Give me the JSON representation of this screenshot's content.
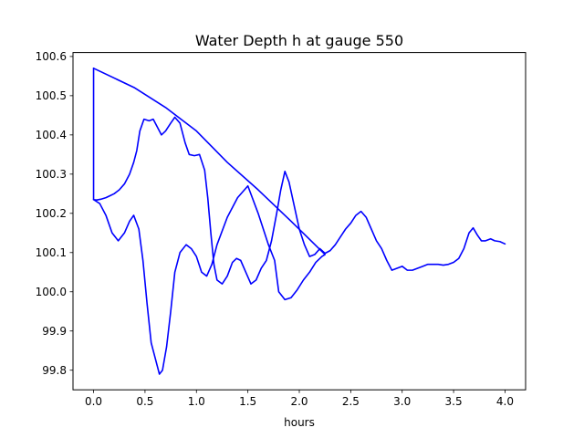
{
  "chart_data": {
    "type": "line",
    "title": "Water Depth h at gauge 550",
    "xlabel": "hours",
    "ylabel": "",
    "xlim": [
      -0.2,
      4.2
    ],
    "ylim": [
      99.75,
      100.61
    ],
    "xticks": [
      0.0,
      0.5,
      1.0,
      1.5,
      2.0,
      2.5,
      3.0,
      3.5,
      4.0
    ],
    "xtick_labels": [
      "0.0",
      "0.5",
      "1.0",
      "1.5",
      "2.0",
      "2.5",
      "3.0",
      "3.5",
      "4.0"
    ],
    "yticks": [
      99.8,
      99.9,
      100.0,
      100.1,
      100.2,
      100.3,
      100.4,
      100.5,
      100.6
    ],
    "ytick_labels": [
      "99.8",
      "99.9",
      "100.0",
      "100.1",
      "100.2",
      "100.3",
      "100.4",
      "100.5",
      "100.6"
    ],
    "grid": false,
    "line_color": "#0000ff",
    "series": [
      {
        "x": [
          0.0,
          0.0,
          0.0,
          0.03,
          0.07,
          0.12,
          0.16,
          0.2,
          0.25,
          0.3,
          0.35,
          0.39,
          0.42,
          0.45,
          0.49,
          0.54,
          0.58,
          0.62,
          0.66,
          0.7,
          0.75,
          0.79,
          0.84,
          0.89,
          0.93,
          0.98,
          1.03,
          1.08,
          1.11,
          1.14,
          1.17,
          1.2,
          1.25,
          1.3,
          1.35,
          1.39,
          1.43,
          1.48,
          1.53,
          1.58,
          1.63,
          1.68,
          1.73,
          1.78,
          1.82,
          1.86,
          1.9,
          1.95,
          2.0,
          2.05,
          2.1,
          2.15,
          2.2,
          2.25,
          2.3,
          2.35,
          2.4,
          2.45,
          2.5,
          2.55,
          2.6,
          2.65,
          2.7,
          2.75,
          2.8,
          2.85,
          2.9,
          2.95,
          3.0,
          3.05,
          3.1,
          3.15,
          3.2,
          3.25,
          3.3,
          3.35,
          3.4,
          3.45,
          3.5,
          3.55,
          3.6,
          3.65,
          3.69,
          3.73,
          3.77,
          3.81,
          3.86,
          3.9,
          3.95,
          4.0
        ],
        "y": [
          100.57,
          100.24,
          100.235,
          100.234,
          100.236,
          100.24,
          100.245,
          100.25,
          100.26,
          100.275,
          100.3,
          100.33,
          100.36,
          100.41,
          100.44,
          100.436,
          100.44,
          100.42,
          100.4,
          100.41,
          100.43,
          100.445,
          100.43,
          100.38,
          100.35,
          100.347,
          100.35,
          100.31,
          100.24,
          100.15,
          100.07,
          100.03,
          100.02,
          100.04,
          100.075,
          100.085,
          100.08,
          100.05,
          100.02,
          100.03,
          100.06,
          100.08,
          100.13,
          100.2,
          100.26,
          100.307,
          100.28,
          100.22,
          100.16,
          100.12,
          100.09,
          100.095,
          100.11,
          100.098,
          100.105,
          100.12,
          100.14,
          100.16,
          100.175,
          100.195,
          100.205,
          100.19,
          100.16,
          100.13,
          100.11,
          100.08,
          100.055,
          100.06,
          100.065,
          100.055,
          100.055,
          100.06,
          100.065,
          100.07,
          100.07,
          100.07,
          100.068,
          100.07,
          100.075,
          100.085,
          100.11,
          100.15,
          100.163,
          100.145,
          100.13,
          100.13,
          100.135,
          100.13,
          100.128,
          100.122
        ]
      },
      {
        "x": [
          0.0,
          0.06,
          0.12,
          0.18,
          0.24,
          0.3,
          0.35,
          0.39,
          0.44,
          0.48,
          0.52,
          0.56,
          0.6,
          0.64,
          0.67,
          0.71,
          0.75,
          0.79,
          0.84,
          0.9,
          0.95,
          1.0,
          1.05,
          1.1,
          1.15,
          1.2,
          1.3,
          1.4,
          1.5,
          1.6,
          1.7,
          1.76,
          1.8,
          1.86,
          1.92,
          1.98,
          2.04,
          2.1,
          2.16,
          2.22,
          2.25,
          1.92,
          1.6,
          1.3,
          1.0,
          0.7,
          0.4,
          0.0
        ],
        "y": [
          100.235,
          100.225,
          100.195,
          100.15,
          100.13,
          100.15,
          100.18,
          100.195,
          100.16,
          100.08,
          99.97,
          99.87,
          99.83,
          99.79,
          99.8,
          99.86,
          99.95,
          100.05,
          100.1,
          100.12,
          100.11,
          100.09,
          100.05,
          100.04,
          100.07,
          100.12,
          100.19,
          100.24,
          100.27,
          100.2,
          100.12,
          100.08,
          100.0,
          99.98,
          99.985,
          100.005,
          100.03,
          100.05,
          100.075,
          100.09,
          100.095,
          100.18,
          100.26,
          100.33,
          100.41,
          100.47,
          100.52,
          100.57
        ]
      }
    ]
  }
}
